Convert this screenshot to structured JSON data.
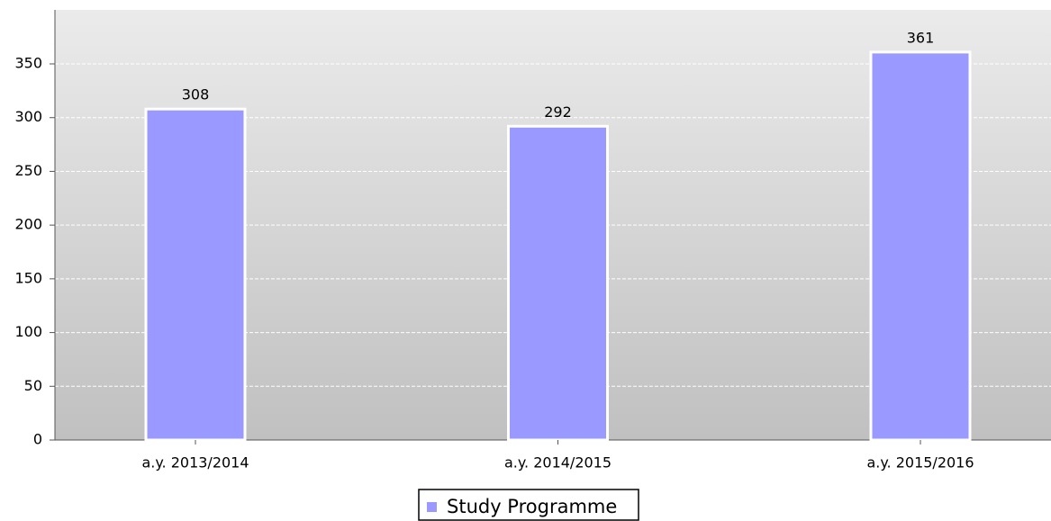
{
  "chart_data": {
    "type": "bar",
    "categories": [
      "a.y. 2013/2014",
      "a.y. 2014/2015",
      "a.y. 2015/2016"
    ],
    "series": [
      {
        "name": "Study Programme",
        "color": "#9999ff",
        "values": [
          308,
          292,
          361
        ]
      }
    ],
    "ylim": [
      0,
      400
    ],
    "yticks": [
      0,
      50,
      100,
      150,
      200,
      250,
      300,
      350
    ],
    "grid": true,
    "legend": "bottom"
  }
}
